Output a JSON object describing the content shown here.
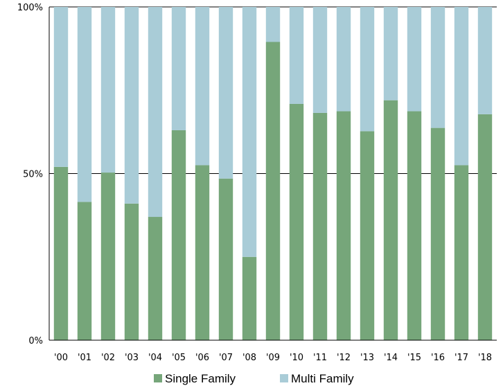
{
  "chart_data": {
    "type": "bar",
    "stacked": true,
    "normalized": true,
    "categories": [
      "'00",
      "'01",
      "'02",
      "'03",
      "'04",
      "'05",
      "'06",
      "'07",
      "'08",
      "'09",
      "'10",
      "'11",
      "'12",
      "'13",
      "'14",
      "'15",
      "'16",
      "'17",
      "'18"
    ],
    "series": [
      {
        "name": "Single Family",
        "color": "#76a67a",
        "values": [
          52,
          41.5,
          50.3,
          41,
          37,
          63,
          52.5,
          48.5,
          25,
          89.5,
          70.9,
          68.2,
          68.7,
          62.7,
          72,
          68.7,
          63.7,
          52.5,
          67.8
        ]
      },
      {
        "name": "Multi Family",
        "color": "#a9ccd7",
        "values": [
          48,
          58.5,
          49.7,
          59,
          63,
          37,
          47.5,
          51.5,
          75,
          10.5,
          29.1,
          31.8,
          31.3,
          37.3,
          28,
          31.3,
          36.3,
          47.5,
          32.2
        ]
      }
    ],
    "yticks": [
      "0%",
      "50%",
      "100%"
    ],
    "ylim": [
      0,
      100
    ],
    "gridlines": [
      50,
      100
    ],
    "legend_position": "bottom-center"
  }
}
